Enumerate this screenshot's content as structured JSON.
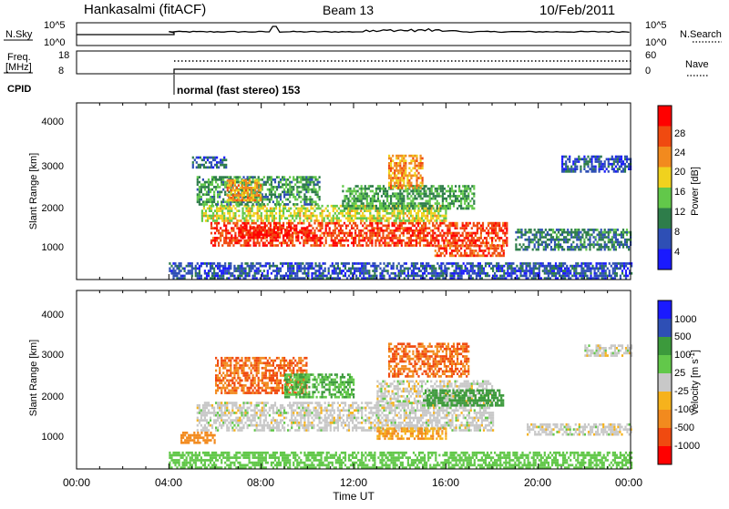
{
  "header": {
    "station": "Hankasalmi (fitACF)",
    "beam": "Beam 13",
    "date": "10/Feb/2011"
  },
  "panels": {
    "nsky_label": "N.Sky",
    "nsky_ticks": [
      "10^5",
      "10^0"
    ],
    "nsearch_label": "N.Search",
    "nsearch_ticks": [
      "10^5",
      "10^0"
    ],
    "freq_label_1": "Freq.",
    "freq_label_2": "[MHz]",
    "freq_ticks": [
      "18",
      "8"
    ],
    "nave_label": "Nave",
    "nave_ticks": [
      "60",
      "0"
    ],
    "cpid_label": "CPID",
    "cpid_text": "normal (fast stereo) 153"
  },
  "colors": {
    "power": [
      "#1a1aff",
      "#2e4fb5",
      "#2e7d4a",
      "#62c84a",
      "#f0d21e",
      "#f28a1e",
      "#f04a10",
      "#ff0000"
    ],
    "velocity": [
      "#ff0000",
      "#f04a10",
      "#f28a1e",
      "#f6b21c",
      "#c8c8c8",
      "#62c84a",
      "#3c9a3c",
      "#2e4fb5",
      "#1a1aff"
    ]
  },
  "chart_data": [
    {
      "type": "heatmap",
      "title": "",
      "ylabel": "Slant Range [km]",
      "xlabel": "",
      "x_range_hours": [
        0,
        24
      ],
      "ylim_km": [
        200,
        4500
      ],
      "y_ticks": [
        "4000",
        "3000",
        "2000",
        "1000"
      ],
      "colorbar_label": "Power [dB]",
      "colorbar_ticks": [
        "28",
        "24",
        "20",
        "16",
        "12",
        "8",
        "4"
      ],
      "colorbar_range": [
        0,
        32
      ],
      "regions": [
        {
          "x": [
            4.0,
            24.0
          ],
          "y": [
            200,
            600
          ],
          "value": 6
        },
        {
          "x": [
            5.8,
            18.6
          ],
          "y": [
            1000,
            1600
          ],
          "value": 27
        },
        {
          "x": [
            7.0,
            10.0
          ],
          "y": [
            1200,
            1500
          ],
          "value": 29
        },
        {
          "x": [
            5.4,
            16.0
          ],
          "y": [
            1600,
            2000
          ],
          "value": 17
        },
        {
          "x": [
            5.2,
            10.5
          ],
          "y": [
            2000,
            2700
          ],
          "value": 11
        },
        {
          "x": [
            6.5,
            8.0
          ],
          "y": [
            2100,
            2600
          ],
          "value": 21
        },
        {
          "x": [
            11.5,
            17.2
          ],
          "y": [
            1900,
            2500
          ],
          "value": 12
        },
        {
          "x": [
            13.5,
            15.0
          ],
          "y": [
            2400,
            3200
          ],
          "value": 22
        },
        {
          "x": [
            15.5,
            18.5
          ],
          "y": [
            750,
            1050
          ],
          "value": 26
        },
        {
          "x": [
            5.0,
            6.5
          ],
          "y": [
            2900,
            3200
          ],
          "value": 7
        },
        {
          "x": [
            19.0,
            24.0
          ],
          "y": [
            900,
            1400
          ],
          "value": 9
        },
        {
          "x": [
            21.0,
            24.0
          ],
          "y": [
            2800,
            3200
          ],
          "value": 6
        }
      ]
    },
    {
      "type": "heatmap",
      "title": "",
      "ylabel": "Slant Range [km]",
      "xlabel": "Time UT",
      "x_range_hours": [
        0,
        24
      ],
      "x_ticks": [
        "00:00",
        "04:00",
        "08:00",
        "12:00",
        "16:00",
        "20:00",
        "00:00"
      ],
      "ylim_km": [
        200,
        4500
      ],
      "y_ticks": [
        "4000",
        "3000",
        "2000",
        "1000"
      ],
      "colorbar_label": "Velocity [m s^-1]",
      "colorbar_ticks": [
        "1000",
        "500",
        "100",
        "25",
        "-25",
        "-100",
        "-500",
        "-1000"
      ],
      "regions": [
        {
          "x": [
            4.0,
            24.0
          ],
          "y": [
            200,
            600
          ],
          "value": 60
        },
        {
          "x": [
            5.2,
            18.0
          ],
          "y": [
            1100,
            1800
          ],
          "value": 0
        },
        {
          "x": [
            13.0,
            18.0
          ],
          "y": [
            1800,
            2300
          ],
          "value": 0
        },
        {
          "x": [
            6.0,
            10.0
          ],
          "y": [
            2000,
            2900
          ],
          "value": -500
        },
        {
          "x": [
            9.0,
            12.0
          ],
          "y": [
            1900,
            2500
          ],
          "value": 100
        },
        {
          "x": [
            13.5,
            17.0
          ],
          "y": [
            2400,
            3200
          ],
          "value": -500
        },
        {
          "x": [
            13.0,
            16.0
          ],
          "y": [
            900,
            1200
          ],
          "value": -100
        },
        {
          "x": [
            15.0,
            18.5
          ],
          "y": [
            1700,
            2100
          ],
          "value": 150
        },
        {
          "x": [
            19.5,
            24.0
          ],
          "y": [
            1000,
            1300
          ],
          "value": 0
        },
        {
          "x": [
            22.0,
            24.0
          ],
          "y": [
            2900,
            3200
          ],
          "value": 0
        },
        {
          "x": [
            4.5,
            6.0
          ],
          "y": [
            800,
            1100
          ],
          "value": -200
        }
      ]
    }
  ]
}
